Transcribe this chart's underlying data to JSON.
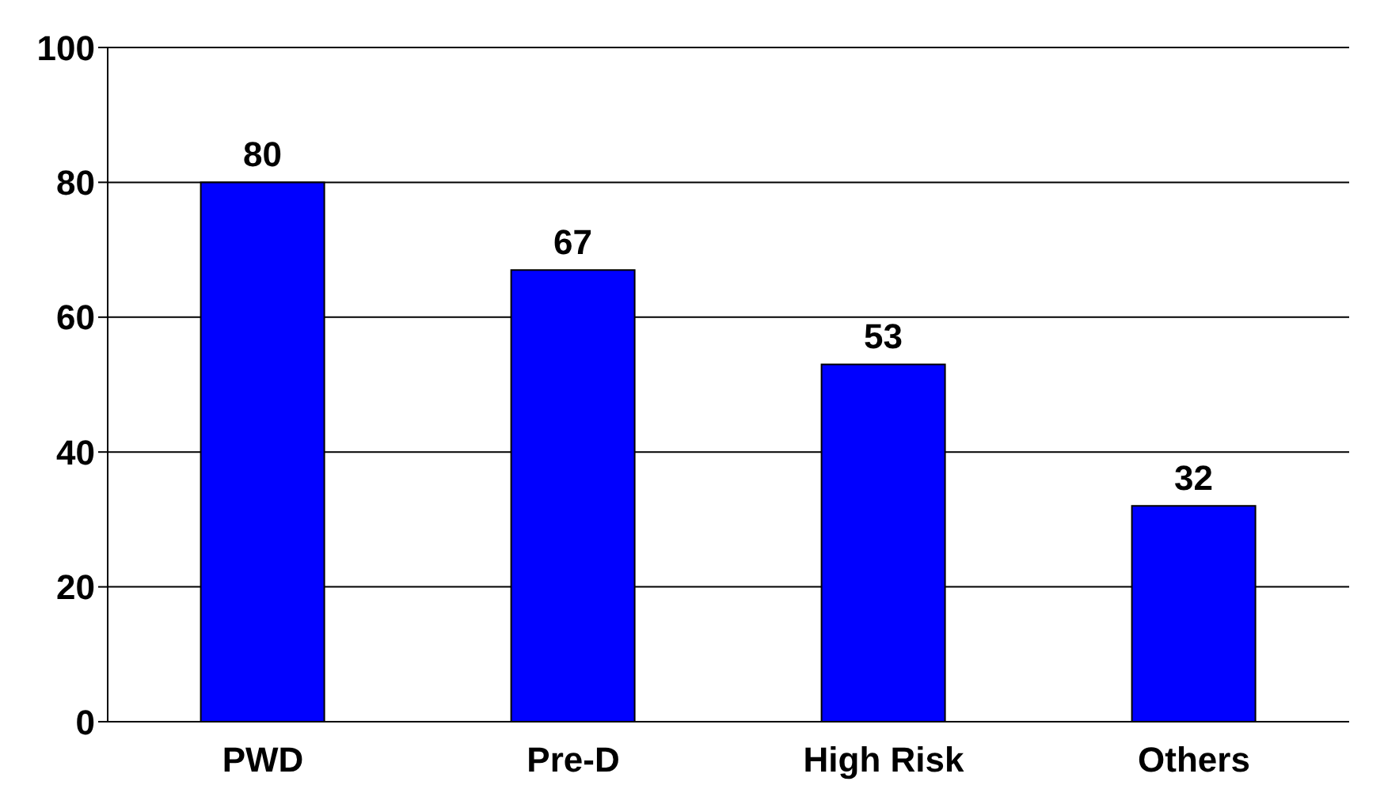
{
  "chart_data": {
    "type": "bar",
    "categories": [
      "PWD",
      "Pre-D",
      "High Risk",
      "Others"
    ],
    "values": [
      80,
      67,
      53,
      32
    ],
    "color": "#0000ff",
    "ylim": [
      0,
      100
    ],
    "yticks": [
      0,
      20,
      40,
      60,
      80,
      100
    ],
    "grid": "y",
    "data_labels": true
  }
}
